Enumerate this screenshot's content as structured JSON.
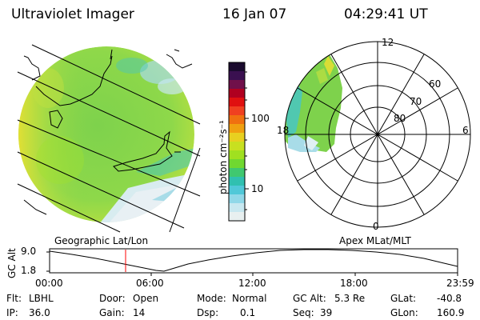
{
  "header": {
    "title": "Ultraviolet Imager",
    "date": "16 Jan 07",
    "time": "04:29:41 UT"
  },
  "colorbar": {
    "unit_label": "photon cm⁻²s⁻¹",
    "ticks": [
      "100",
      "10"
    ],
    "colors": [
      "#1a0a2e",
      "#3a1050",
      "#70104a",
      "#b00020",
      "#e01010",
      "#f04020",
      "#f07010",
      "#f0a010",
      "#e8d020",
      "#c8e020",
      "#a0e020",
      "#70d830",
      "#40c870",
      "#30c0b0",
      "#50c8d8",
      "#90d8e8",
      "#c8e8f0",
      "#e8f0f0"
    ]
  },
  "map_left": {
    "caption": "Geographic Lat/Lon",
    "fill_color": "#7ed24c",
    "edge_color": "#f0e030",
    "low_color": "#d8ecf0"
  },
  "map_right": {
    "caption": "Apex MLat/MLT",
    "mlt_labels": [
      "12",
      "18",
      "6",
      "0"
    ],
    "lat_labels": [
      "60",
      "70",
      "80"
    ]
  },
  "timeline": {
    "y_axis_title": "GC Alt",
    "y_ticks": [
      "9.0",
      "1.8"
    ],
    "x_ticks": [
      "00:00",
      "06:00",
      "12:00",
      "18:00",
      "23:59"
    ],
    "marker_color": "#ff0000"
  },
  "footer": {
    "filter_label": "Flt:",
    "filter_value": "LBHL",
    "ip_label": "IP:",
    "ip_value": "36.0",
    "door_label": "Door:",
    "door_value": "Open",
    "gain_label": "Gain:",
    "gain_value": "14",
    "mode_label": "Mode:",
    "mode_value": "Normal",
    "dsp_label": "Dsp:",
    "dsp_value": "0.1",
    "gcalt_label": "GC Alt:",
    "gcalt_value": "5.3 Re",
    "seq_label": "Seq:",
    "seq_value": "39",
    "glat_label": "GLat:",
    "glat_value": "-40.8",
    "glon_label": "GLon:",
    "glon_value": "160.9"
  }
}
